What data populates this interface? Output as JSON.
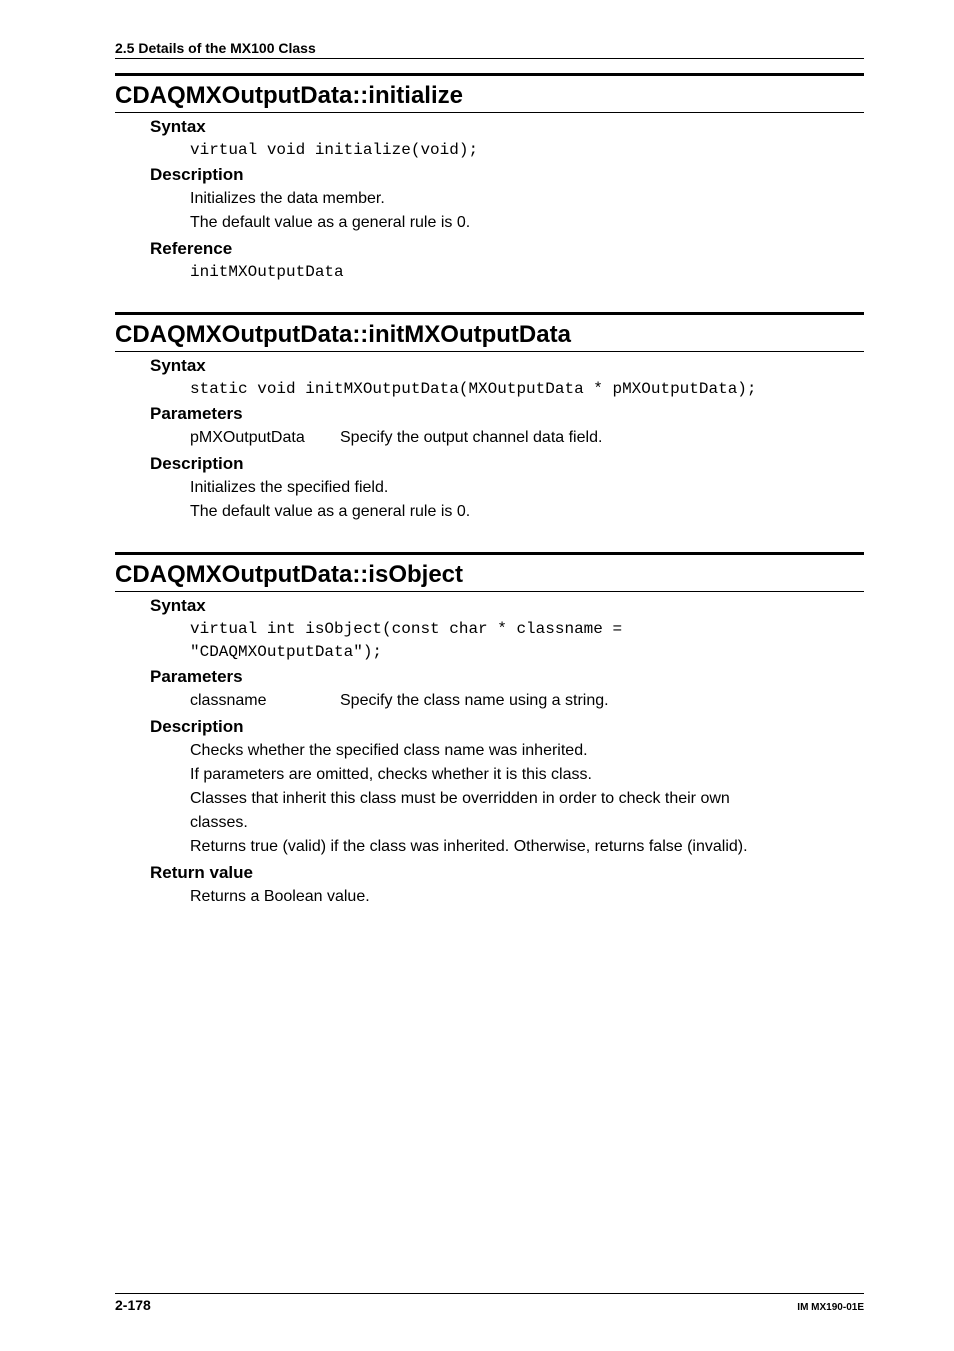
{
  "header": "2.5  Details of the MX100 Class",
  "functions": [
    {
      "title": "CDAQMXOutputData::initialize",
      "sections": [
        {
          "heading": "Syntax",
          "code": [
            "virtual void initialize(void);"
          ]
        },
        {
          "heading": "Description",
          "body": [
            "Initializes the data member.",
            "The default value as a general rule is 0."
          ]
        },
        {
          "heading": "Reference",
          "code": [
            "initMXOutputData"
          ]
        }
      ]
    },
    {
      "title": "CDAQMXOutputData::initMXOutputData",
      "sections": [
        {
          "heading": "Syntax",
          "code": [
            "static void initMXOutputData(MXOutputData * pMXOutputData);"
          ]
        },
        {
          "heading": "Parameters",
          "params": [
            {
              "name": "pMXOutputData",
              "desc": "Specify the output channel data field."
            }
          ]
        },
        {
          "heading": "Description",
          "body": [
            "Initializes the specified field.",
            "The default value as a general rule is 0."
          ]
        }
      ]
    },
    {
      "title": "CDAQMXOutputData::isObject",
      "sections": [
        {
          "heading": "Syntax",
          "code": [
            "virtual int isObject(const char * classname =",
            "\"CDAQMXOutputData\");"
          ]
        },
        {
          "heading": "Parameters",
          "params": [
            {
              "name": "classname",
              "desc": "Specify the class name using a string."
            }
          ]
        },
        {
          "heading": "Description",
          "body": [
            "Checks whether the specified class name was inherited.",
            "If parameters are omitted, checks whether it is this class.",
            "Classes that inherit this class must be overridden in order to check their own",
            "classes.",
            "Returns true (valid) if the class was inherited.  Otherwise, returns false (invalid)."
          ]
        },
        {
          "heading": "Return value",
          "body": [
            "Returns a Boolean value."
          ]
        }
      ]
    }
  ],
  "footer": {
    "pageLeft": "2-178",
    "pageRight": "IM MX190-01E"
  }
}
